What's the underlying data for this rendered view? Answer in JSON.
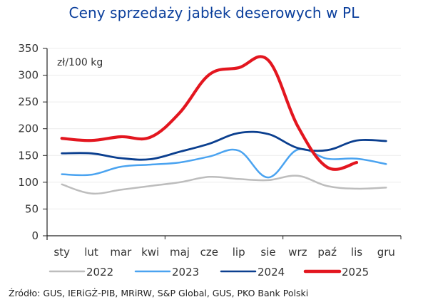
{
  "chart_data": {
    "type": "line",
    "title": "Ceny sprzedaży jabłek deserowych w PL",
    "ylabel": "zł/100 kg",
    "xlabel": "",
    "categories": [
      "sty",
      "lut",
      "mar",
      "kwi",
      "maj",
      "cze",
      "lip",
      "sie",
      "wrz",
      "paź",
      "lis",
      "gru"
    ],
    "ylim": [
      0,
      350
    ],
    "yticks": [
      0,
      50,
      100,
      150,
      200,
      250,
      300,
      350
    ],
    "grid": true,
    "legend": "bottom",
    "series": [
      {
        "name": "2022",
        "color": "#bdbdbd",
        "values": [
          96,
          79,
          86,
          93,
          100,
          110,
          106,
          104,
          112,
          93,
          88,
          90
        ]
      },
      {
        "name": "2023",
        "color": "#4aa3f0",
        "values": [
          115,
          114,
          129,
          133,
          137,
          148,
          159,
          109,
          161,
          144,
          144,
          134
        ]
      },
      {
        "name": "2024",
        "color": "#0b3f8f",
        "values": [
          154,
          154,
          145,
          143,
          157,
          172,
          192,
          190,
          164,
          160,
          178,
          177
        ]
      },
      {
        "name": "2025",
        "color": "#e3161f",
        "values": [
          182,
          178,
          185,
          184,
          230,
          301,
          314,
          328,
          205,
          128,
          137,
          null
        ]
      }
    ]
  },
  "source": "Źródło: GUS, IERiGŻ-PIB, MRiRW, S&P Global, GUS, PKO Bank Polski"
}
